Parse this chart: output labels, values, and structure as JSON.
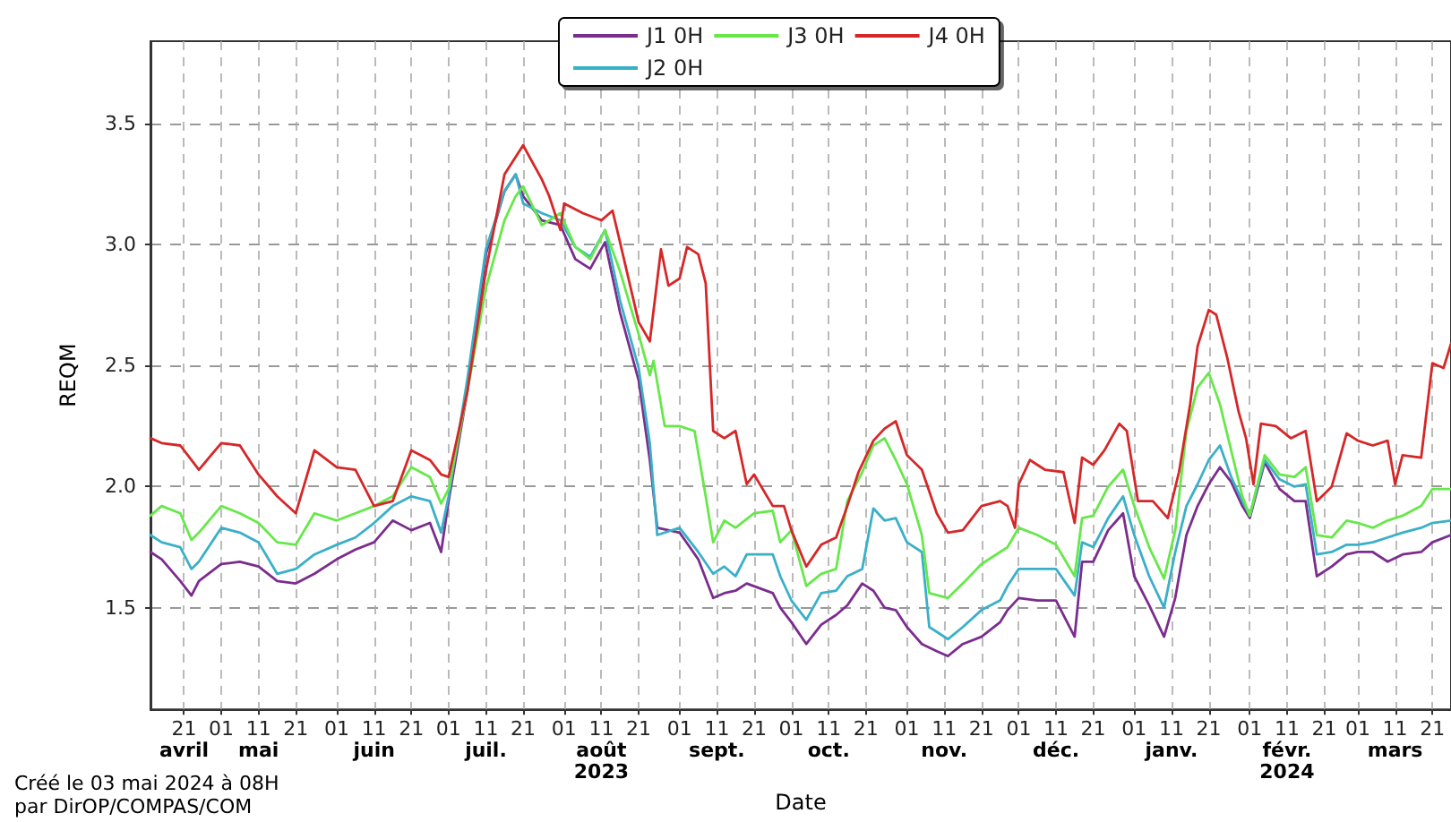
{
  "chart_data": {
    "type": "line",
    "xlabel": "Date",
    "ylabel": "REQM",
    "annotations": [
      "Créé le 03 mai 2024 à 08H",
      "par DirOP/COMPAS/COM"
    ],
    "xlim": [
      "2023-04-12",
      "2024-03-26"
    ],
    "ylim": [
      1.08,
      3.84
    ],
    "xticks": [
      {
        "value": "2023-04-21",
        "label": "21\navril"
      },
      {
        "value": "2023-05-01",
        "label": "01"
      },
      {
        "value": "2023-05-11",
        "label": "11\nmai"
      },
      {
        "value": "2023-05-21",
        "label": "21"
      },
      {
        "value": "2023-06-01",
        "label": "01"
      },
      {
        "value": "2023-06-11",
        "label": "11\njuin"
      },
      {
        "value": "2023-06-21",
        "label": "21"
      },
      {
        "value": "2023-07-01",
        "label": "01"
      },
      {
        "value": "2023-07-11",
        "label": "11\njuil."
      },
      {
        "value": "2023-07-21",
        "label": "21"
      },
      {
        "value": "2023-08-01",
        "label": "01"
      },
      {
        "value": "2023-08-11",
        "label": "11\naoût\n2023"
      },
      {
        "value": "2023-08-21",
        "label": "21"
      },
      {
        "value": "2023-09-01",
        "label": "01"
      },
      {
        "value": "2023-09-11",
        "label": "11\nsept."
      },
      {
        "value": "2023-09-21",
        "label": "21"
      },
      {
        "value": "2023-10-01",
        "label": "01"
      },
      {
        "value": "2023-10-11",
        "label": "11\noct."
      },
      {
        "value": "2023-10-21",
        "label": "21"
      },
      {
        "value": "2023-11-01",
        "label": "01"
      },
      {
        "value": "2023-11-11",
        "label": "11\nnov."
      },
      {
        "value": "2023-11-21",
        "label": "21"
      },
      {
        "value": "2023-12-01",
        "label": "01"
      },
      {
        "value": "2023-12-11",
        "label": "11\ndéc."
      },
      {
        "value": "2023-12-21",
        "label": "21"
      },
      {
        "value": "2024-01-01",
        "label": "01"
      },
      {
        "value": "2024-01-11",
        "label": "11\njanv."
      },
      {
        "value": "2024-01-21",
        "label": "21"
      },
      {
        "value": "2024-02-01",
        "label": "01"
      },
      {
        "value": "2024-02-11",
        "label": "11\nfévr.\n2024"
      },
      {
        "value": "2024-02-21",
        "label": "21"
      },
      {
        "value": "2024-03-01",
        "label": "01"
      },
      {
        "value": "2024-03-11",
        "label": "11\nmars"
      },
      {
        "value": "2024-03-21",
        "label": "21"
      }
    ],
    "yticks": [
      1.5,
      {
        "value": 2,
        "label": "2.0"
      },
      2.5,
      {
        "value": 3,
        "label": "3.0"
      },
      3.5
    ],
    "grid": true,
    "legend": "top",
    "marker": "none",
    "line_style": "solid",
    "series": [
      {
        "name": "J1 0H",
        "color": "#7b2d8e",
        "x": [
          "2023-04-12",
          "2023-04-15",
          "2023-04-20",
          "2023-04-23",
          "2023-04-25",
          "2023-05-01",
          "2023-05-06",
          "2023-05-11",
          "2023-05-16",
          "2023-05-21",
          "2023-05-26",
          "2023-06-01",
          "2023-06-06",
          "2023-06-11",
          "2023-06-16",
          "2023-06-21",
          "2023-06-26",
          "2023-06-29",
          "2023-07-01",
          "2023-07-06",
          "2023-07-11",
          "2023-07-16",
          "2023-07-19",
          "2023-07-21",
          "2023-07-26",
          "2023-07-31",
          "2023-08-04",
          "2023-08-08",
          "2023-08-12",
          "2023-08-16",
          "2023-08-21",
          "2023-08-24",
          "2023-08-26",
          "2023-09-01",
          "2023-09-06",
          "2023-09-10",
          "2023-09-13",
          "2023-09-16",
          "2023-09-19",
          "2023-09-26",
          "2023-09-28",
          "2023-10-01",
          "2023-10-05",
          "2023-10-09",
          "2023-10-13",
          "2023-10-16",
          "2023-10-20",
          "2023-10-23",
          "2023-10-26",
          "2023-10-29",
          "2023-11-01",
          "2023-11-05",
          "2023-11-09",
          "2023-11-12",
          "2023-11-16",
          "2023-11-21",
          "2023-11-26",
          "2023-11-28",
          "2023-12-01",
          "2023-12-06",
          "2023-12-11",
          "2023-12-16",
          "2023-12-18",
          "2023-12-21",
          "2023-12-25",
          "2023-12-29",
          "2024-01-01",
          "2024-01-05",
          "2024-01-09",
          "2024-01-12",
          "2024-01-15",
          "2024-01-18",
          "2024-01-21",
          "2024-01-24",
          "2024-01-27",
          "2024-01-30",
          "2024-02-01",
          "2024-02-05",
          "2024-02-09",
          "2024-02-13",
          "2024-02-16",
          "2024-02-19",
          "2024-02-23",
          "2024-02-27",
          "2024-03-01",
          "2024-03-05",
          "2024-03-09",
          "2024-03-13",
          "2024-03-18",
          "2024-03-21",
          "2024-03-26"
        ],
        "values": [
          1.73,
          1.7,
          1.61,
          1.55,
          1.61,
          1.68,
          1.69,
          1.67,
          1.61,
          1.6,
          1.64,
          1.7,
          1.74,
          1.77,
          1.86,
          1.82,
          1.85,
          1.73,
          1.94,
          2.39,
          2.96,
          3.22,
          3.29,
          3.2,
          3.1,
          3.08,
          2.94,
          2.9,
          3.01,
          2.72,
          2.44,
          2.11,
          1.83,
          1.81,
          1.7,
          1.54,
          1.56,
          1.57,
          1.6,
          1.56,
          1.5,
          1.44,
          1.35,
          1.43,
          1.47,
          1.51,
          1.6,
          1.57,
          1.5,
          1.49,
          1.42,
          1.35,
          1.32,
          1.3,
          1.35,
          1.38,
          1.44,
          1.49,
          1.54,
          1.53,
          1.53,
          1.38,
          1.69,
          1.69,
          1.82,
          1.89,
          1.63,
          1.51,
          1.38,
          1.54,
          1.8,
          1.92,
          2.01,
          2.08,
          2.02,
          1.92,
          1.87,
          2.1,
          1.99,
          1.94,
          1.94,
          1.63,
          1.67,
          1.72,
          1.73,
          1.73,
          1.69,
          1.72,
          1.73,
          1.77,
          1.8
        ]
      },
      {
        "name": "J2 0H",
        "color": "#3ab0c8",
        "x": [
          "2023-04-12",
          "2023-04-15",
          "2023-04-20",
          "2023-04-23",
          "2023-04-25",
          "2023-05-01",
          "2023-05-06",
          "2023-05-11",
          "2023-05-16",
          "2023-05-21",
          "2023-05-26",
          "2023-06-01",
          "2023-06-06",
          "2023-06-11",
          "2023-06-16",
          "2023-06-21",
          "2023-06-26",
          "2023-06-29",
          "2023-07-01",
          "2023-07-06",
          "2023-07-11",
          "2023-07-16",
          "2023-07-19",
          "2023-07-21",
          "2023-07-26",
          "2023-07-31",
          "2023-08-04",
          "2023-08-08",
          "2023-08-12",
          "2023-08-16",
          "2023-08-21",
          "2023-08-24",
          "2023-08-26",
          "2023-09-01",
          "2023-09-06",
          "2023-09-10",
          "2023-09-13",
          "2023-09-16",
          "2023-09-19",
          "2023-09-26",
          "2023-09-28",
          "2023-10-01",
          "2023-10-05",
          "2023-10-09",
          "2023-10-13",
          "2023-10-16",
          "2023-10-20",
          "2023-10-23",
          "2023-10-26",
          "2023-10-29",
          "2023-11-01",
          "2023-11-05",
          "2023-11-07",
          "2023-11-12",
          "2023-11-16",
          "2023-11-21",
          "2023-11-26",
          "2023-11-28",
          "2023-12-01",
          "2023-12-06",
          "2023-12-11",
          "2023-12-16",
          "2023-12-18",
          "2023-12-21",
          "2023-12-25",
          "2023-12-29",
          "2024-01-01",
          "2024-01-05",
          "2024-01-09",
          "2024-01-12",
          "2024-01-15",
          "2024-01-18",
          "2024-01-21",
          "2024-01-24",
          "2024-01-27",
          "2024-01-30",
          "2024-02-01",
          "2024-02-05",
          "2024-02-09",
          "2024-02-13",
          "2024-02-16",
          "2024-02-19",
          "2024-02-23",
          "2024-02-27",
          "2024-03-01",
          "2024-03-05",
          "2024-03-09",
          "2024-03-13",
          "2024-03-18",
          "2024-03-21",
          "2024-03-26"
        ],
        "values": [
          1.8,
          1.77,
          1.75,
          1.66,
          1.69,
          1.83,
          1.81,
          1.77,
          1.64,
          1.66,
          1.72,
          1.76,
          1.79,
          1.85,
          1.92,
          1.96,
          1.94,
          1.81,
          1.96,
          2.44,
          2.98,
          3.22,
          3.29,
          3.17,
          3.13,
          3.1,
          2.99,
          2.95,
          3.06,
          2.77,
          2.49,
          2.18,
          1.8,
          1.83,
          1.73,
          1.64,
          1.67,
          1.63,
          1.72,
          1.72,
          1.63,
          1.53,
          1.45,
          1.56,
          1.57,
          1.63,
          1.66,
          1.91,
          1.86,
          1.87,
          1.77,
          1.73,
          1.42,
          1.37,
          1.42,
          1.49,
          1.53,
          1.59,
          1.66,
          1.66,
          1.66,
          1.55,
          1.77,
          1.75,
          1.87,
          1.96,
          1.8,
          1.63,
          1.5,
          1.73,
          1.92,
          2.01,
          2.11,
          2.17,
          2.04,
          1.94,
          1.88,
          2.11,
          2.03,
          2.0,
          2.01,
          1.72,
          1.73,
          1.76,
          1.76,
          1.77,
          1.79,
          1.81,
          1.83,
          1.85,
          1.86
        ]
      },
      {
        "name": "J3 0H",
        "color": "#66e84a",
        "x": [
          "2023-04-12",
          "2023-04-15",
          "2023-04-20",
          "2023-04-23",
          "2023-04-25",
          "2023-05-01",
          "2023-05-06",
          "2023-05-11",
          "2023-05-16",
          "2023-05-21",
          "2023-05-26",
          "2023-06-01",
          "2023-06-06",
          "2023-06-11",
          "2023-06-16",
          "2023-06-21",
          "2023-06-26",
          "2023-06-29",
          "2023-07-01",
          "2023-07-06",
          "2023-07-11",
          "2023-07-16",
          "2023-07-19",
          "2023-07-21",
          "2023-07-26",
          "2023-07-31",
          "2023-08-04",
          "2023-08-08",
          "2023-08-12",
          "2023-08-16",
          "2023-08-21",
          "2023-08-24",
          "2023-08-25",
          "2023-08-28",
          "2023-09-01",
          "2023-09-05",
          "2023-09-08",
          "2023-09-10",
          "2023-09-13",
          "2023-09-16",
          "2023-09-21",
          "2023-09-26",
          "2023-09-28",
          "2023-10-01",
          "2023-10-05",
          "2023-10-09",
          "2023-10-13",
          "2023-10-16",
          "2023-10-20",
          "2023-10-23",
          "2023-10-26",
          "2023-10-29",
          "2023-11-01",
          "2023-11-05",
          "2023-11-07",
          "2023-11-12",
          "2023-11-16",
          "2023-11-21",
          "2023-11-26",
          "2023-11-28",
          "2023-12-01",
          "2023-12-06",
          "2023-12-11",
          "2023-12-16",
          "2023-12-18",
          "2023-12-21",
          "2023-12-25",
          "2023-12-29",
          "2024-01-01",
          "2024-01-05",
          "2024-01-09",
          "2024-01-12",
          "2024-01-15",
          "2024-01-18",
          "2024-01-21",
          "2024-01-24",
          "2024-01-27",
          "2024-01-30",
          "2024-02-01",
          "2024-02-05",
          "2024-02-09",
          "2024-02-13",
          "2024-02-16",
          "2024-02-19",
          "2024-02-23",
          "2024-02-27",
          "2024-03-01",
          "2024-03-05",
          "2024-03-09",
          "2024-03-13",
          "2024-03-18",
          "2024-03-21",
          "2024-03-26"
        ],
        "values": [
          1.88,
          1.92,
          1.89,
          1.78,
          1.81,
          1.92,
          1.89,
          1.85,
          1.77,
          1.76,
          1.89,
          1.86,
          1.89,
          1.92,
          1.96,
          2.08,
          2.04,
          1.93,
          1.99,
          2.39,
          2.82,
          3.1,
          3.2,
          3.24,
          3.08,
          3.13,
          2.99,
          2.94,
          3.06,
          2.89,
          2.63,
          2.46,
          2.52,
          2.25,
          2.25,
          2.23,
          1.96,
          1.77,
          1.86,
          1.83,
          1.89,
          1.9,
          1.77,
          1.82,
          1.59,
          1.64,
          1.66,
          1.94,
          2.06,
          2.17,
          2.2,
          2.11,
          2.01,
          1.8,
          1.56,
          1.54,
          1.6,
          1.68,
          1.73,
          1.75,
          1.83,
          1.8,
          1.76,
          1.63,
          1.87,
          1.88,
          2.0,
          2.07,
          1.92,
          1.75,
          1.62,
          1.82,
          2.23,
          2.41,
          2.47,
          2.34,
          2.15,
          1.96,
          1.88,
          2.13,
          2.05,
          2.04,
          2.08,
          1.8,
          1.79,
          1.86,
          1.85,
          1.83,
          1.86,
          1.88,
          1.92,
          1.99,
          1.99
        ]
      },
      {
        "name": "J4 0H",
        "color": "#d62728",
        "x": [
          "2023-04-12",
          "2023-04-15",
          "2023-04-20",
          "2023-04-25",
          "2023-05-01",
          "2023-05-06",
          "2023-05-11",
          "2023-05-16",
          "2023-05-21",
          "2023-05-26",
          "2023-06-01",
          "2023-06-06",
          "2023-06-11",
          "2023-06-16",
          "2023-06-21",
          "2023-06-26",
          "2023-06-29",
          "2023-07-01",
          "2023-07-06",
          "2023-07-11",
          "2023-07-16",
          "2023-07-21",
          "2023-07-26",
          "2023-07-28",
          "2023-07-31",
          "2023-08-01",
          "2023-08-06",
          "2023-08-11",
          "2023-08-14",
          "2023-08-16",
          "2023-08-21",
          "2023-08-24",
          "2023-08-27",
          "2023-08-29",
          "2023-09-01",
          "2023-09-03",
          "2023-09-06",
          "2023-09-08",
          "2023-09-10",
          "2023-09-13",
          "2023-09-16",
          "2023-09-19",
          "2023-09-21",
          "2023-09-26",
          "2023-09-29",
          "2023-10-01",
          "2023-10-05",
          "2023-10-09",
          "2023-10-13",
          "2023-10-16",
          "2023-10-19",
          "2023-10-23",
          "2023-10-26",
          "2023-10-29",
          "2023-11-01",
          "2023-11-05",
          "2023-11-09",
          "2023-11-12",
          "2023-11-16",
          "2023-11-21",
          "2023-11-26",
          "2023-11-28",
          "2023-11-30",
          "2023-12-01",
          "2023-12-04",
          "2023-12-08",
          "2023-12-13",
          "2023-12-16",
          "2023-12-18",
          "2023-12-21",
          "2023-12-24",
          "2023-12-28",
          "2023-12-30",
          "2024-01-02",
          "2024-01-06",
          "2024-01-10",
          "2024-01-13",
          "2024-01-16",
          "2024-01-18",
          "2024-01-21",
          "2024-01-23",
          "2024-01-26",
          "2024-01-29",
          "2024-01-31",
          "2024-02-02",
          "2024-02-04",
          "2024-02-08",
          "2024-02-12",
          "2024-02-16",
          "2024-02-19",
          "2024-02-23",
          "2024-02-27",
          "2024-03-01",
          "2024-03-05",
          "2024-03-09",
          "2024-03-11",
          "2024-03-13",
          "2024-03-18",
          "2024-03-21",
          "2024-03-24",
          "2024-03-26"
        ],
        "values": [
          2.2,
          2.18,
          2.17,
          2.07,
          2.18,
          2.17,
          2.05,
          1.96,
          1.89,
          2.15,
          2.08,
          2.07,
          1.92,
          1.94,
          2.15,
          2.11,
          2.05,
          2.04,
          2.39,
          2.89,
          3.29,
          3.41,
          3.27,
          3.2,
          3.06,
          3.17,
          3.13,
          3.1,
          3.14,
          3.01,
          2.68,
          2.6,
          2.98,
          2.83,
          2.86,
          2.99,
          2.96,
          2.84,
          2.23,
          2.2,
          2.23,
          2.01,
          2.05,
          1.92,
          1.92,
          1.82,
          1.67,
          1.76,
          1.79,
          1.92,
          2.06,
          2.19,
          2.24,
          2.27,
          2.13,
          2.07,
          1.89,
          1.81,
          1.82,
          1.92,
          1.94,
          1.92,
          1.83,
          2.01,
          2.11,
          2.07,
          2.06,
          1.85,
          2.12,
          2.09,
          2.15,
          2.26,
          2.23,
          1.94,
          1.94,
          1.87,
          2.06,
          2.34,
          2.58,
          2.73,
          2.71,
          2.53,
          2.31,
          2.2,
          2.01,
          2.26,
          2.25,
          2.2,
          2.23,
          1.94,
          2.0,
          2.22,
          2.19,
          2.17,
          2.19,
          2.01,
          2.13,
          2.12,
          2.51,
          2.49,
          2.59
        ]
      }
    ]
  }
}
